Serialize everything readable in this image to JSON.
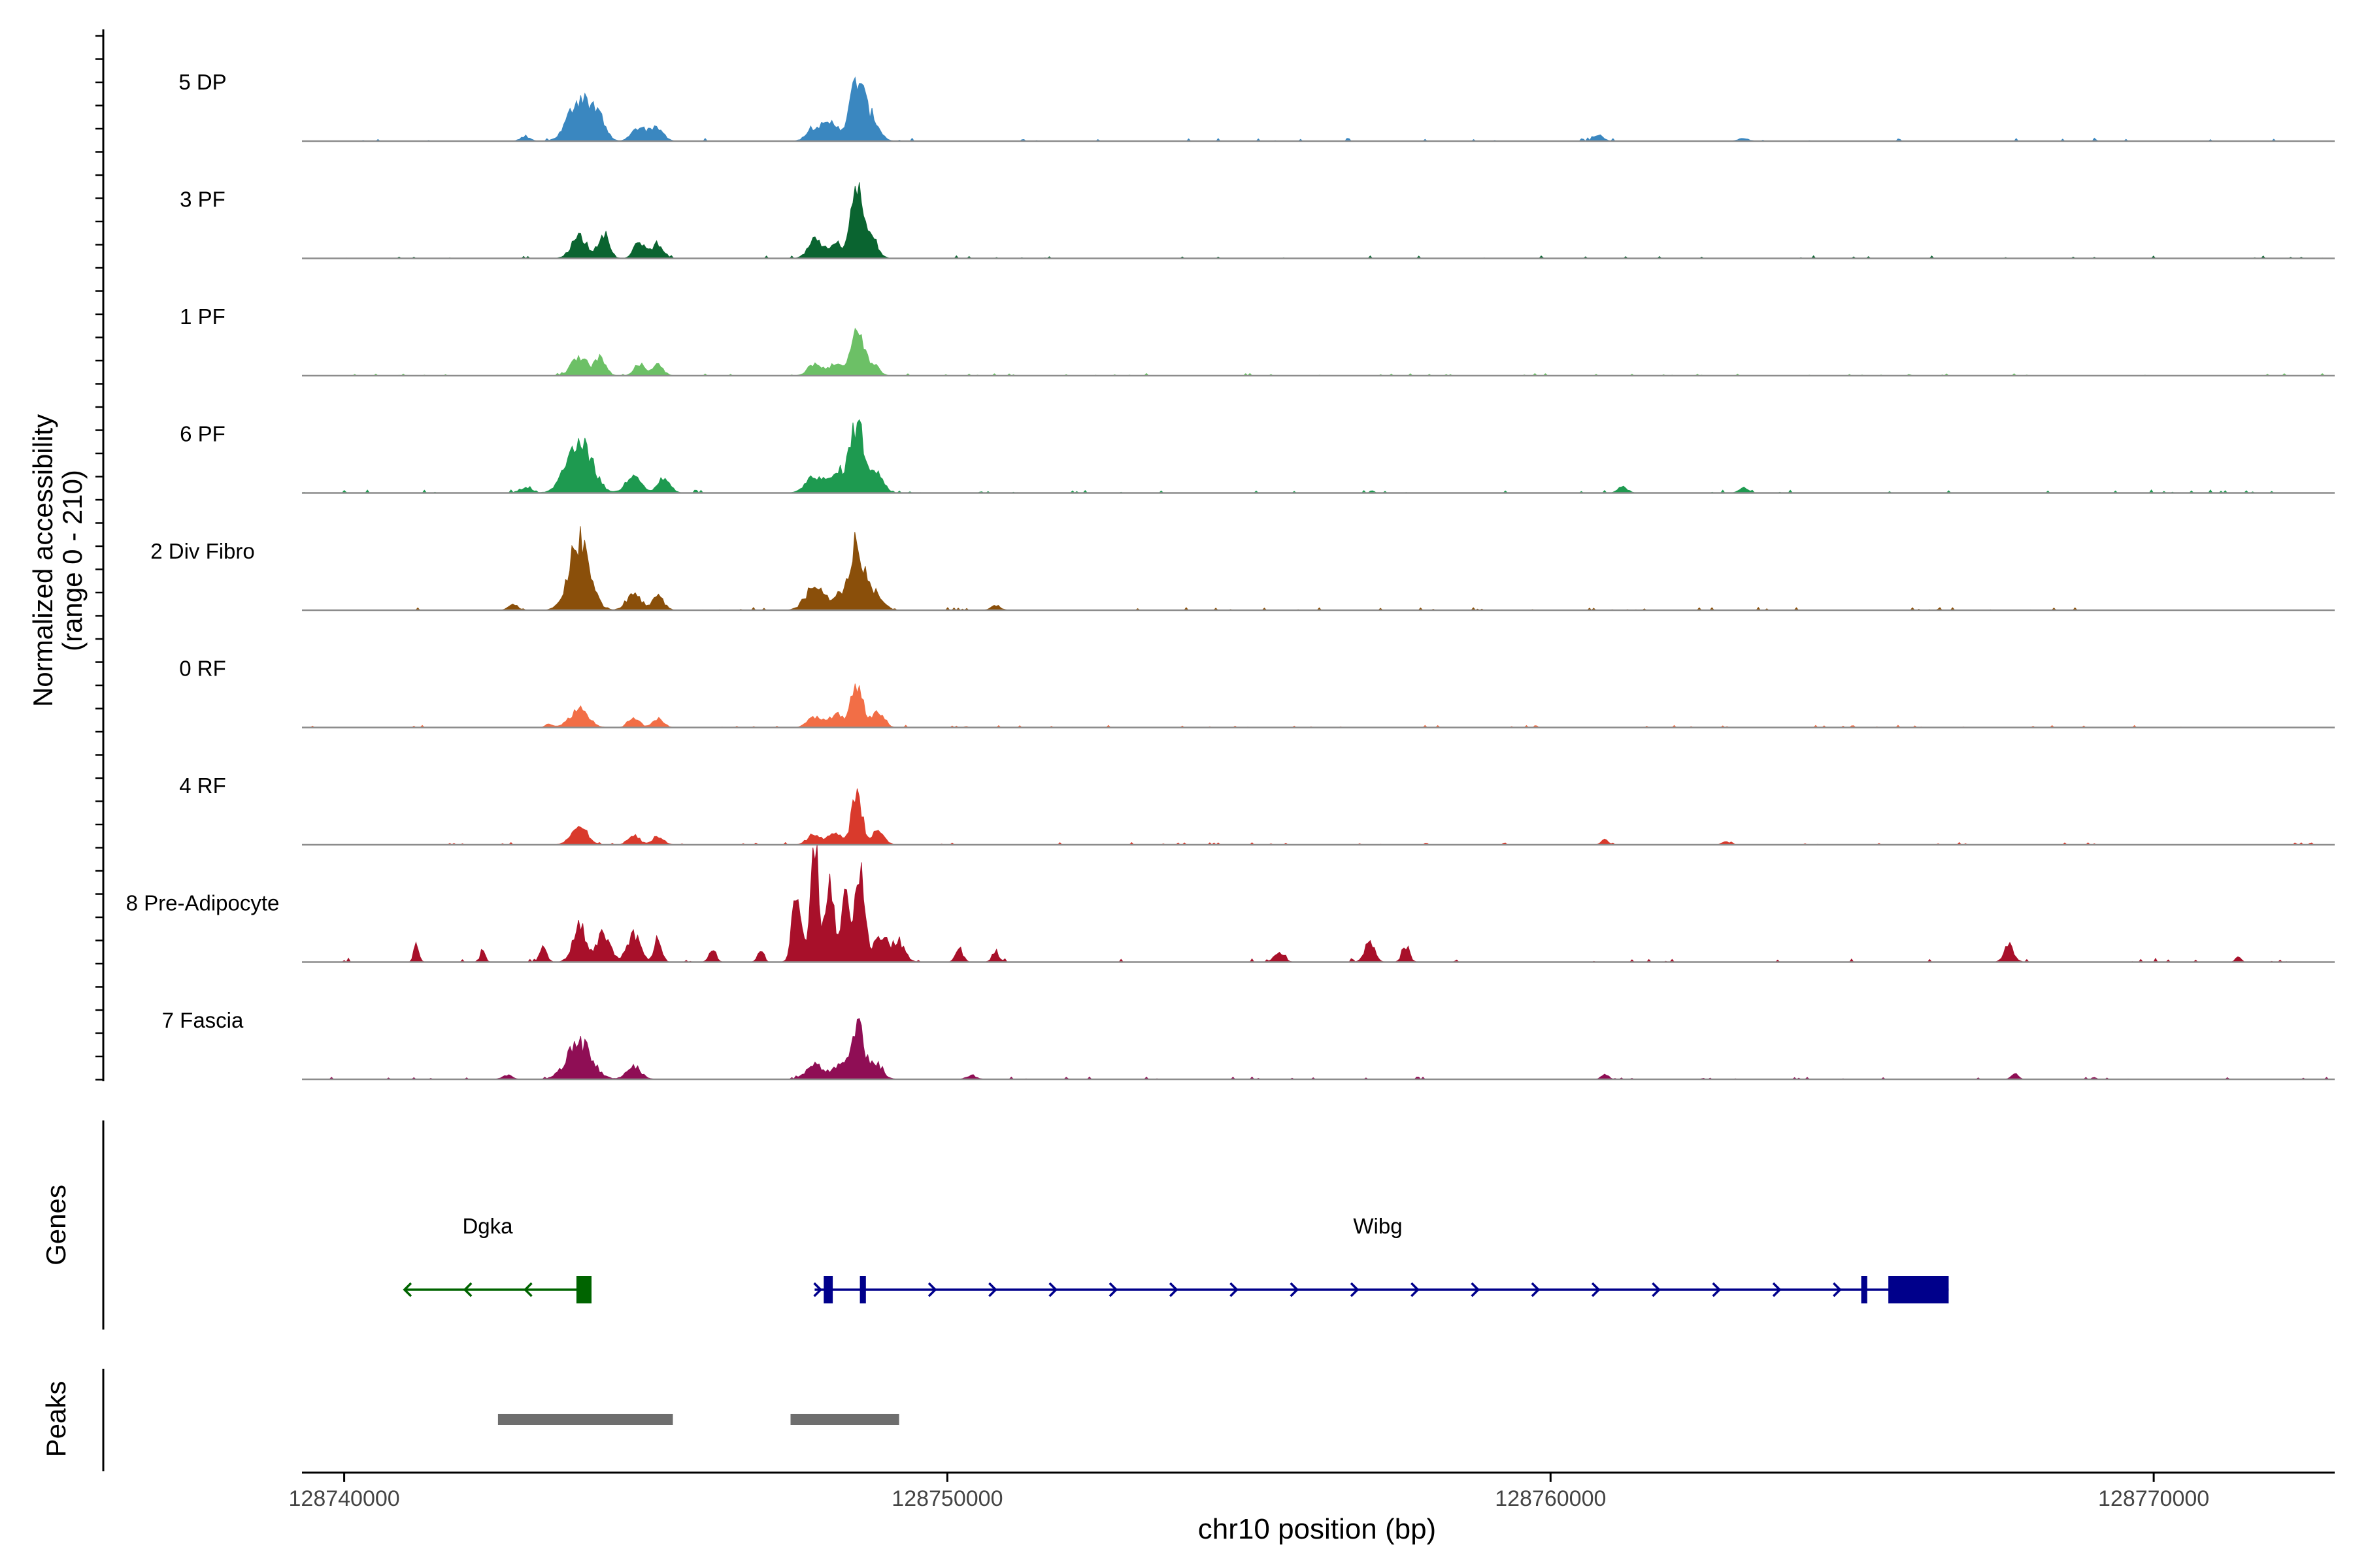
{
  "chart_data": {
    "type": "area",
    "title": "",
    "ylabel_line1": "Normalized accessibility",
    "ylabel_line2": "(range 0 - 210)",
    "ylim": [
      0,
      210
    ],
    "xlabel": "chr10 position (bp)",
    "xlim": [
      128739300,
      128773000
    ],
    "xticks": [
      {
        "value": 128740000,
        "label": "128740000"
      },
      {
        "value": 128750000,
        "label": "128750000"
      },
      {
        "value": 128760000,
        "label": "128760000"
      },
      {
        "value": 128770000,
        "label": "128770000"
      }
    ],
    "tracks": [
      {
        "name": "5 DP",
        "color": "#3A87C0",
        "scale": 0.42,
        "start": 128739300,
        "end": 128773000,
        "peaks": [
          [
            128743900,
            85,
            180
          ],
          [
            128744200,
            45,
            120
          ],
          [
            128744900,
            28,
            120
          ],
          [
            128745200,
            25,
            100
          ],
          [
            128747800,
            28,
            120
          ],
          [
            128748100,
            35,
            130
          ],
          [
            128748500,
            120,
            110
          ],
          [
            128748750,
            45,
            120
          ],
          [
            128743000,
            8,
            80
          ],
          [
            128760800,
            12,
            80
          ],
          [
            128763200,
            6,
            80
          ]
        ]
      },
      {
        "name": "3 PF",
        "color": "#0A6430",
        "scale": 0.38,
        "start": 128739300,
        "end": 128773000,
        "peaks": [
          [
            128743900,
            50,
            130
          ],
          [
            128744300,
            55,
            90
          ],
          [
            128744900,
            38,
            90
          ],
          [
            128745200,
            35,
            90
          ],
          [
            128747800,
            40,
            110
          ],
          [
            128748150,
            38,
            110
          ],
          [
            128748500,
            165,
            90
          ],
          [
            128748750,
            45,
            100
          ]
        ]
      },
      {
        "name": "1 PF",
        "color": "#6CC066",
        "scale": 0.32,
        "start": 128739300,
        "end": 128773000,
        "peaks": [
          [
            128743900,
            50,
            130
          ],
          [
            128744250,
            45,
            90
          ],
          [
            128744900,
            30,
            90
          ],
          [
            128745200,
            28,
            90
          ],
          [
            128747800,
            32,
            110
          ],
          [
            128748150,
            35,
            110
          ],
          [
            128748500,
            125,
            90
          ],
          [
            128748750,
            38,
            100
          ]
        ]
      },
      {
        "name": "6 PF",
        "color": "#1E9A50",
        "scale": 0.42,
        "start": 128739300,
        "end": 128773000,
        "peaks": [
          [
            128743900,
            110,
            200
          ],
          [
            128744800,
            40,
            120
          ],
          [
            128745300,
            30,
            100
          ],
          [
            128747800,
            35,
            140
          ],
          [
            128748200,
            40,
            130
          ],
          [
            128748500,
            135,
            110
          ],
          [
            128748800,
            45,
            120
          ],
          [
            128743000,
            10,
            100
          ],
          [
            128761200,
            12,
            80
          ],
          [
            128763200,
            10,
            80
          ]
        ]
      },
      {
        "name": "2 Div Fibro",
        "color": "#8A4F0A",
        "scale": 0.4,
        "start": 128740800,
        "end": 128771500,
        "peaks": [
          [
            128743900,
            145,
            170
          ],
          [
            128744800,
            35,
            120
          ],
          [
            128745200,
            28,
            100
          ],
          [
            128747800,
            50,
            150
          ],
          [
            128748200,
            30,
            120
          ],
          [
            128748500,
            140,
            110
          ],
          [
            128748800,
            40,
            120
          ],
          [
            128742800,
            12,
            80
          ],
          [
            128750800,
            10,
            80
          ]
        ]
      },
      {
        "name": "0 RF",
        "color": "#F26E46",
        "scale": 0.32,
        "start": 128739300,
        "end": 128773000,
        "peaks": [
          [
            128743900,
            50,
            150
          ],
          [
            128744800,
            28,
            90
          ],
          [
            128745200,
            24,
            90
          ],
          [
            128747800,
            30,
            110
          ],
          [
            128748150,
            35,
            110
          ],
          [
            128748500,
            120,
            90
          ],
          [
            128748850,
            45,
            100
          ],
          [
            128743400,
            10,
            60
          ]
        ]
      },
      {
        "name": "4 RF",
        "color": "#D93A2C",
        "scale": 0.32,
        "start": 128739300,
        "end": 128773000,
        "peaks": [
          [
            128743900,
            50,
            130
          ],
          [
            128744800,
            28,
            90
          ],
          [
            128745200,
            24,
            90
          ],
          [
            128747800,
            30,
            110
          ],
          [
            128748150,
            30,
            110
          ],
          [
            128748500,
            125,
            90
          ],
          [
            128748850,
            35,
            100
          ],
          [
            128760900,
            15,
            60
          ],
          [
            128762900,
            8,
            60
          ]
        ]
      },
      {
        "name": "8 Pre-Adipocyte",
        "color": "#A8102A",
        "scale": 0.55,
        "start": 128739300,
        "end": 128773000,
        "peaks": [
          [
            128741200,
            30,
            40
          ],
          [
            128742300,
            20,
            40
          ],
          [
            128743300,
            20,
            60
          ],
          [
            128743900,
            55,
            110
          ],
          [
            128744300,
            45,
            110
          ],
          [
            128744800,
            40,
            110
          ],
          [
            128745200,
            40,
            60
          ],
          [
            128746100,
            15,
            60
          ],
          [
            128746900,
            18,
            50
          ],
          [
            128747500,
            120,
            70
          ],
          [
            128747800,
            170,
            70
          ],
          [
            128748050,
            140,
            70
          ],
          [
            128748300,
            95,
            70
          ],
          [
            128748550,
            150,
            80
          ],
          [
            128748900,
            40,
            120
          ],
          [
            128749200,
            30,
            100
          ],
          [
            128750200,
            20,
            60
          ],
          [
            128750800,
            15,
            60
          ],
          [
            128755500,
            15,
            80
          ],
          [
            128757000,
            30,
            80
          ],
          [
            128757600,
            25,
            60
          ],
          [
            128767600,
            25,
            80
          ],
          [
            128771400,
            10,
            40
          ]
        ]
      },
      {
        "name": "7 Fascia",
        "color": "#8F0E55",
        "scale": 0.34,
        "start": 128739300,
        "end": 128773000,
        "peaks": [
          [
            128743900,
            90,
            200
          ],
          [
            128744800,
            30,
            120
          ],
          [
            128747800,
            35,
            140
          ],
          [
            128748200,
            30,
            120
          ],
          [
            128748500,
            135,
            100
          ],
          [
            128748800,
            40,
            120
          ],
          [
            128742700,
            10,
            80
          ],
          [
            128750400,
            10,
            80
          ],
          [
            128760900,
            12,
            60
          ],
          [
            128767700,
            12,
            60
          ]
        ]
      }
    ],
    "genes_label": "Genes",
    "genes": [
      {
        "name": "Dgka",
        "strand": "-",
        "color": "#006400",
        "start": 128741000,
        "end": 128744100,
        "exons": [
          [
            128743850,
            128744100
          ]
        ],
        "arrows": [
          128741000,
          128742000,
          128743000
        ]
      },
      {
        "name": "Wibg",
        "strand": "+",
        "color": "#00008B",
        "start": 128747800,
        "end": 128766600,
        "exons": [
          [
            128747950,
            128748100
          ],
          [
            128748550,
            128748650
          ],
          [
            128765150,
            128765250
          ],
          [
            128765600,
            128766600
          ]
        ],
        "arrows": [
          128747900,
          128749800,
          128750800,
          128751800,
          128752800,
          128753800,
          128754800,
          128755800,
          128756800,
          128757800,
          128758800,
          128759800,
          128760800,
          128761800,
          128762800,
          128763800,
          128764800
        ]
      }
    ],
    "peaks_label": "Peaks",
    "peak_regions": [
      [
        128742550,
        128745450
      ],
      [
        128747400,
        128749200
      ]
    ]
  }
}
